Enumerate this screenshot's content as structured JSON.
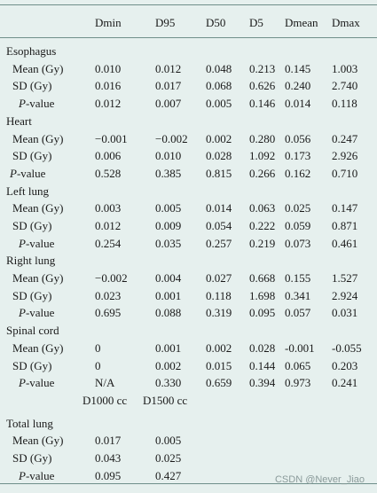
{
  "columns": [
    "Dmin",
    "D95",
    "D50",
    "D5",
    "Dmean",
    "Dmax"
  ],
  "sections": [
    {
      "name": "Esophagus",
      "rows": [
        {
          "label": "Mean (Gy)",
          "values": [
            "0.010",
            "0.012",
            "0.048",
            "0.213",
            "0.145",
            "1.003"
          ]
        },
        {
          "label": "SD (Gy)",
          "values": [
            "0.016",
            "0.017",
            "0.068",
            "0.626",
            "0.240",
            "2.740"
          ]
        },
        {
          "label": "P-value",
          "values": [
            "0.012",
            "0.007",
            "0.005",
            "0.146",
            "0.014",
            "0.118"
          ]
        }
      ]
    },
    {
      "name": "Heart",
      "rows": [
        {
          "label": "Mean (Gy)",
          "values": [
            "−0.001",
            "−0.002",
            "0.002",
            "0.280",
            "0.056",
            "0.247"
          ]
        },
        {
          "label": "SD (Gy)",
          "values": [
            "0.006",
            "0.010",
            "0.028",
            "1.092",
            "0.173",
            "2.926"
          ]
        },
        {
          "label": "P-value",
          "values": [
            "0.528",
            "0.385",
            "0.815",
            "0.266",
            "0.162",
            "0.710"
          ]
        }
      ]
    },
    {
      "name": "Left lung",
      "rows": [
        {
          "label": "Mean (Gy)",
          "values": [
            "0.003",
            "0.005",
            "0.014",
            "0.063",
            "0.025",
            "0.147"
          ]
        },
        {
          "label": "SD (Gy)",
          "values": [
            "0.012",
            "0.009",
            "0.054",
            "0.222",
            "0.059",
            "0.871"
          ]
        },
        {
          "label": "P-value",
          "values": [
            "0.254",
            "0.035",
            "0.257",
            "0.219",
            "0.073",
            "0.461"
          ]
        }
      ]
    },
    {
      "name": "Right lung",
      "rows": [
        {
          "label": "Mean (Gy)",
          "values": [
            "−0.002",
            "0.004",
            "0.027",
            "0.668",
            "0.155",
            "1.527"
          ]
        },
        {
          "label": "SD (Gy)",
          "values": [
            "0.023",
            "0.001",
            "0.118",
            "1.698",
            "0.341",
            "2.924"
          ]
        },
        {
          "label": "P-value",
          "values": [
            "0.695",
            "0.088",
            "0.319",
            "0.095",
            "0.057",
            "0.031"
          ]
        }
      ]
    },
    {
      "name": "Spinal cord",
      "rows": [
        {
          "label": "Mean (Gy)",
          "values": [
            "0",
            "0.001",
            "0.002",
            "0.028",
            "-0.001",
            "-0.055"
          ]
        },
        {
          "label": "SD (Gy)",
          "values": [
            "0",
            "0.002",
            "0.015",
            "0.144",
            "0.065",
            "0.203"
          ]
        },
        {
          "label": "P-value",
          "values": [
            "N/A",
            "0.330",
            "0.659",
            "0.394",
            "0.973",
            "0.241"
          ]
        }
      ]
    }
  ],
  "subheader": [
    "D1000 cc",
    "D1500 cc"
  ],
  "total_lung": {
    "name": "Total lung",
    "rows": [
      {
        "label": "Mean (Gy)",
        "values": [
          "0.017",
          "0.005"
        ]
      },
      {
        "label": "SD (Gy)",
        "values": [
          "0.043",
          "0.025"
        ]
      },
      {
        "label": "P-value",
        "values": [
          "0.095",
          "0.427"
        ]
      }
    ]
  },
  "watermark": "CSDN @Never_Jiao"
}
